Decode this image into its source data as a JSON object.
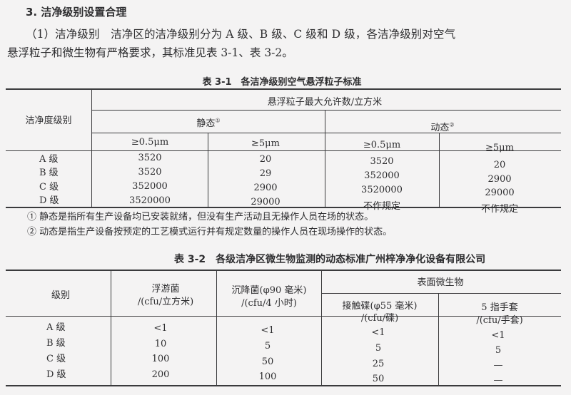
{
  "section_title": "3. 洁净级别设置合理",
  "paragraph": {
    "line1": "（1）洁净级别　洁净区的洁净级别分为 A 级、B 级、C 级和 D 级，各洁净级别对空气",
    "line2": "悬浮粒子和微生物有严格要求，其标准见表 3-1、表 3-2。"
  },
  "table1": {
    "caption": "表 3-1　各洁净级别空气悬浮粒子标准",
    "col_grade": "洁净度级别",
    "group": "悬浮粒子最大允许数/立方米",
    "static": "静态",
    "static_mark": "①",
    "dynamic": "动态",
    "dynamic_mark": "②",
    "sub": [
      "≥0.5μm",
      "≥5μm",
      "≥0.5μm",
      "≥5μm"
    ],
    "grades": [
      "A 级",
      "B 级",
      "C 级",
      "D 级"
    ],
    "columns": [
      [
        "3520",
        "3520",
        "352000",
        "3520000"
      ],
      [
        "20",
        "29",
        "2900",
        "29000"
      ],
      [
        "3520",
        "352000",
        "3520000",
        "不作规定"
      ],
      [
        "20",
        "2900",
        "29000",
        "不作规定"
      ]
    ],
    "notes": [
      "① 静态是指所有生产设备均已安装就绪，但没有生产活动且无操作人员在场的状态。",
      "② 动态是指生产设备按预定的工艺模式运行并有规定数量的操作人员在现场操作的状态。"
    ]
  },
  "table2": {
    "caption": "表 3-2　各级洁净区微生物监测的动态标准广州梓净净化设备有限公司",
    "col_grade": "级别",
    "airborne": [
      "浮游菌",
      "/(cfu/立方米)"
    ],
    "settle": [
      "沉降菌(φ90 毫米)",
      "/(cfu/4 小时)"
    ],
    "surface": "表面微生物",
    "contact": [
      "接触碟(φ55 毫米)",
      "/(cfu/碟)"
    ],
    "glove": [
      "5 指手套",
      "/(cfu/手套)"
    ],
    "grades": [
      "A 级",
      "B 级",
      "C 级",
      "D 级"
    ],
    "columns": [
      [
        "<1",
        "10",
        "100",
        "200"
      ],
      [
        "<1",
        "5",
        "50",
        "100"
      ],
      [
        "<1",
        "5",
        "25",
        "50"
      ],
      [
        "<1",
        "5",
        "—",
        "—"
      ]
    ]
  }
}
